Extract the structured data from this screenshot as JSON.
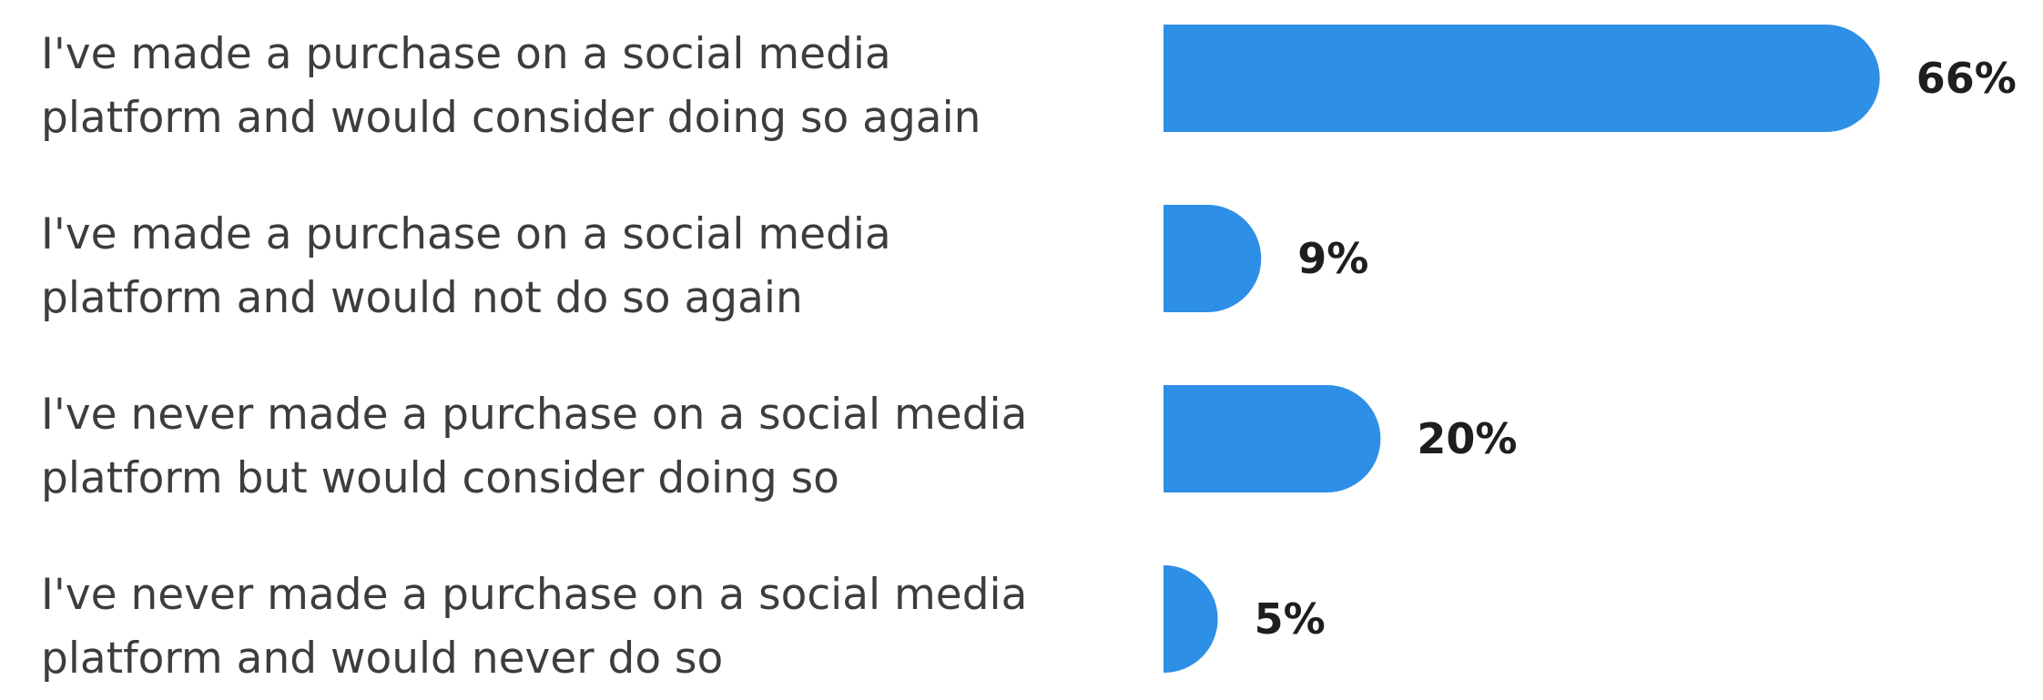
{
  "chart_data": {
    "type": "bar",
    "orientation": "horizontal",
    "categories": [
      [
        "I've made a purchase on a social media",
        "platform and would consider doing so again"
      ],
      [
        "I've made a purchase on a social media",
        "platform and would not do so again"
      ],
      [
        "I've never made a purchase on a social media",
        "platform but would consider doing so"
      ],
      [
        "I've never made a purchase on a social media",
        "platform and would never do so"
      ]
    ],
    "values": [
      66,
      9,
      20,
      5
    ],
    "value_labels": [
      "66%",
      "9%",
      "20%",
      "5%"
    ],
    "unit": "%",
    "bar_color": "#2e8fe6",
    "grid": false,
    "legend": "none"
  }
}
